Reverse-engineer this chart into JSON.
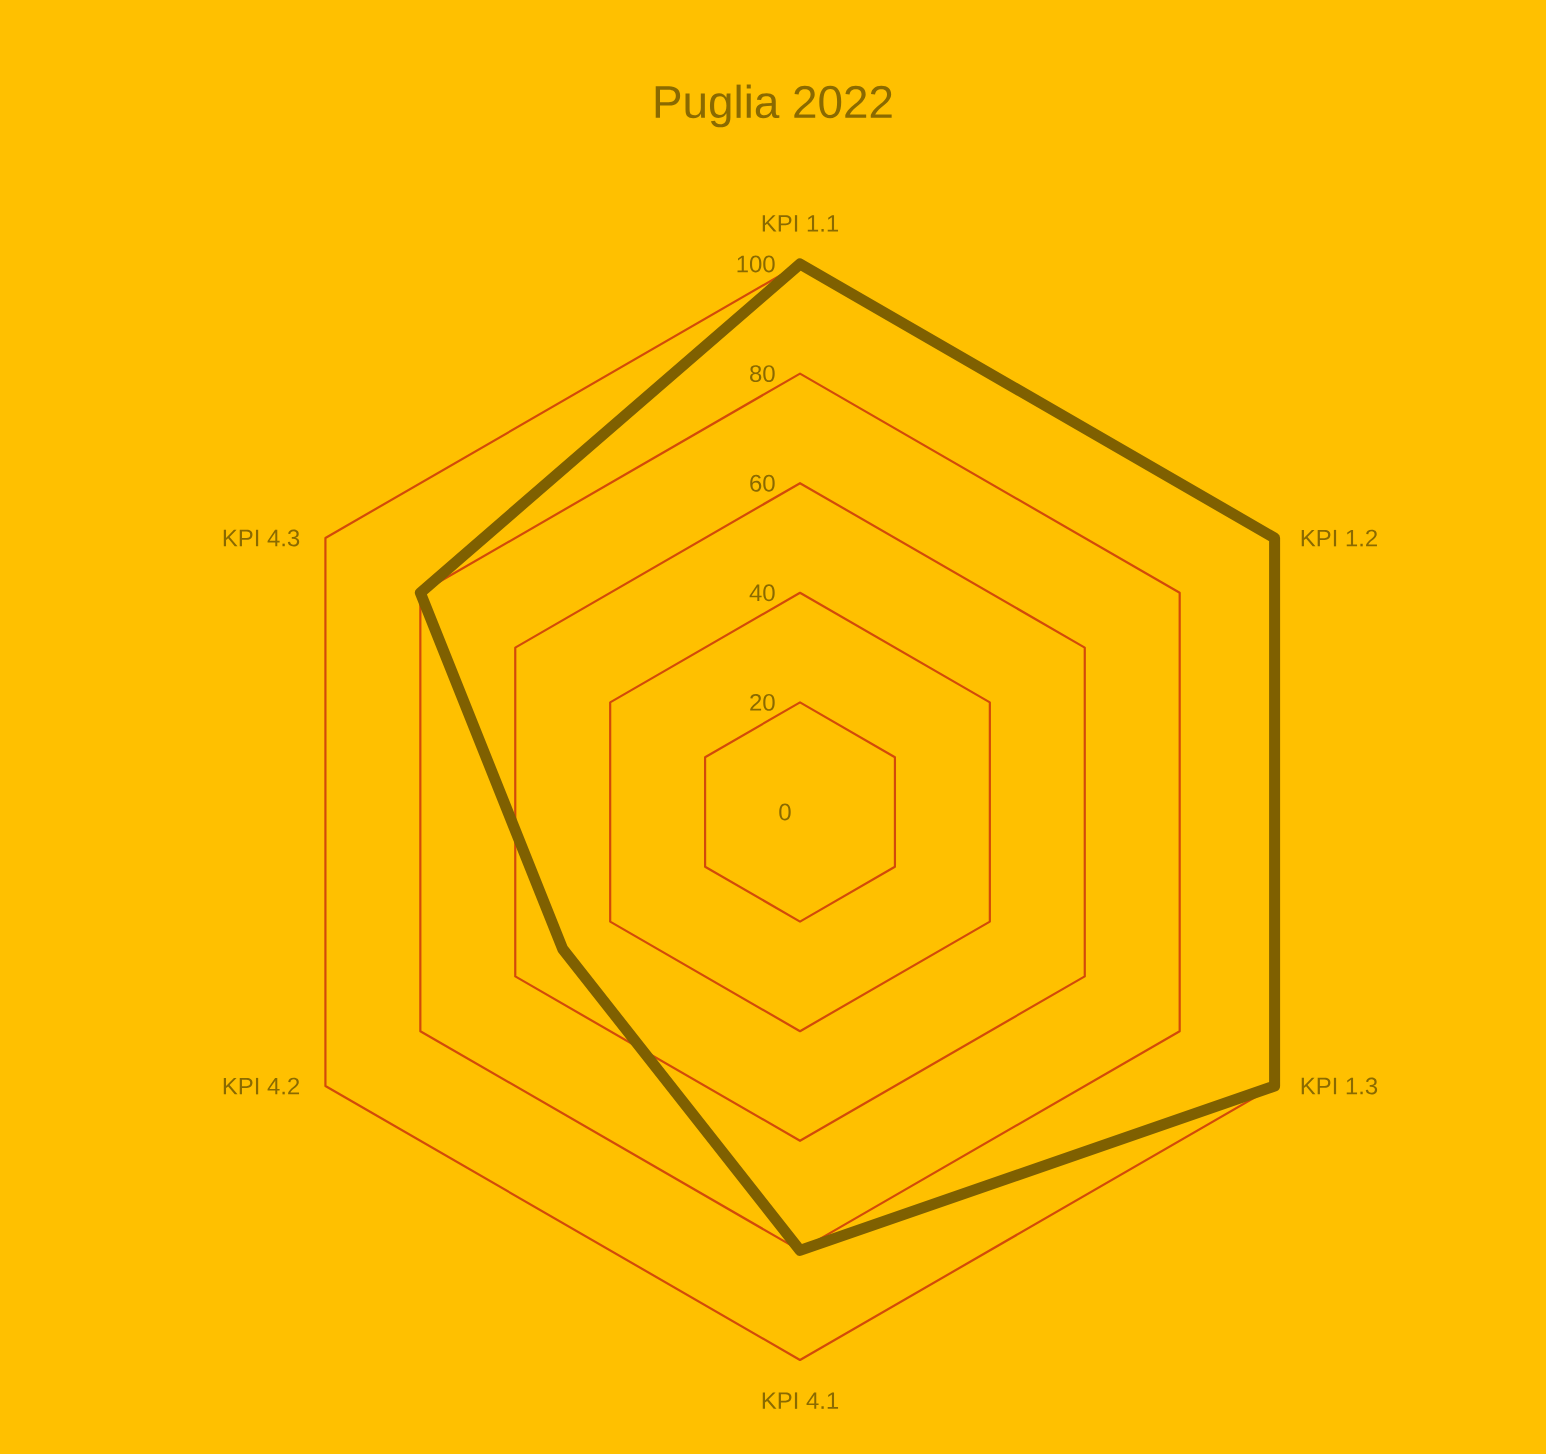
{
  "chart_data": {
    "type": "radar",
    "title": "Puglia 2022",
    "categories": [
      "KPI 1.1",
      "KPI 1.2",
      "KPI 1.3",
      "KPI 4.1",
      "KPI 4.2",
      "KPI 4.3"
    ],
    "series": [
      {
        "color": "#7f6000",
        "values": [
          100,
          100,
          100,
          80,
          50,
          80
        ]
      }
    ],
    "ylim": [
      0,
      100
    ],
    "yticks": [
      0,
      20,
      40,
      60,
      80,
      100
    ],
    "grid": true,
    "marker": "none",
    "line_style": "solid"
  }
}
